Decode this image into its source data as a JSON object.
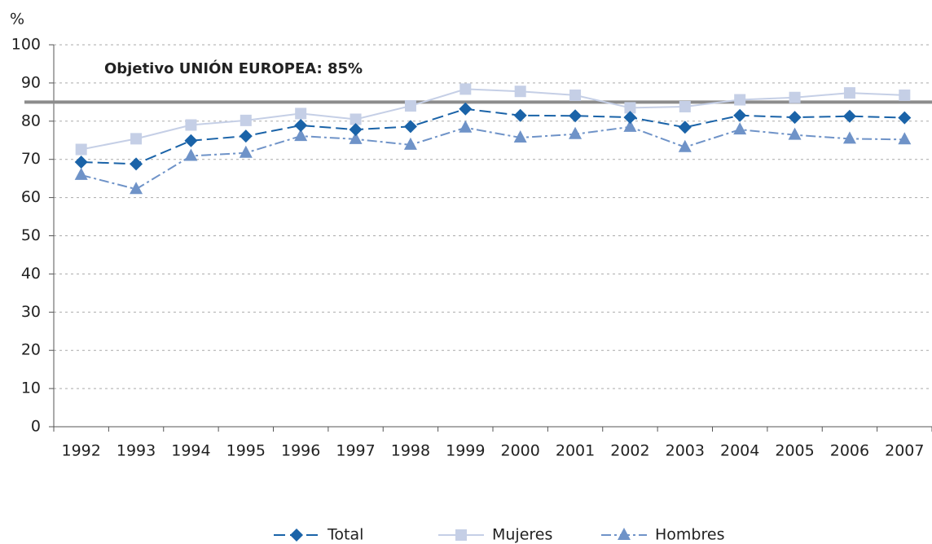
{
  "chart_data": {
    "type": "line",
    "y_label": "%",
    "categories": [
      "1992",
      "1993",
      "1994",
      "1995",
      "1996",
      "1997",
      "1998",
      "1999",
      "2000",
      "2001",
      "2002",
      "2003",
      "2004",
      "2005",
      "2006",
      "2007"
    ],
    "series": [
      {
        "name": "Total",
        "color": "#1a63a8",
        "marker": "diamond",
        "dash": "14 6",
        "values": [
          69.3,
          68.8,
          74.9,
          76.1,
          78.9,
          77.8,
          78.6,
          83.2,
          81.5,
          81.4,
          81.0,
          78.4,
          81.5,
          81.0,
          81.3,
          80.9
        ]
      },
      {
        "name": "Mujeres",
        "color": "#c5cfe6",
        "marker": "square",
        "dash": "none",
        "values": [
          72.6,
          75.4,
          79.0,
          80.2,
          82.0,
          80.5,
          84.0,
          88.4,
          87.8,
          86.8,
          83.5,
          83.8,
          85.6,
          86.2,
          87.4,
          86.8
        ]
      },
      {
        "name": "Hombres",
        "color": "#6f93c8",
        "marker": "triangle",
        "dash": "12 4 3 4",
        "values": [
          65.9,
          62.2,
          70.9,
          71.7,
          76.1,
          75.3,
          73.8,
          78.3,
          75.7,
          76.6,
          78.5,
          73.2,
          77.8,
          76.4,
          75.4,
          75.2
        ]
      }
    ],
    "reference_line": {
      "value": 85,
      "label": "Objetivo UNIÓN EUROPEA: 85%",
      "color": "#8c8c8c"
    },
    "ylim": [
      0,
      100
    ],
    "yticks": [
      0,
      10,
      20,
      30,
      40,
      50,
      60,
      70,
      80,
      90,
      100
    ],
    "grid": true
  }
}
